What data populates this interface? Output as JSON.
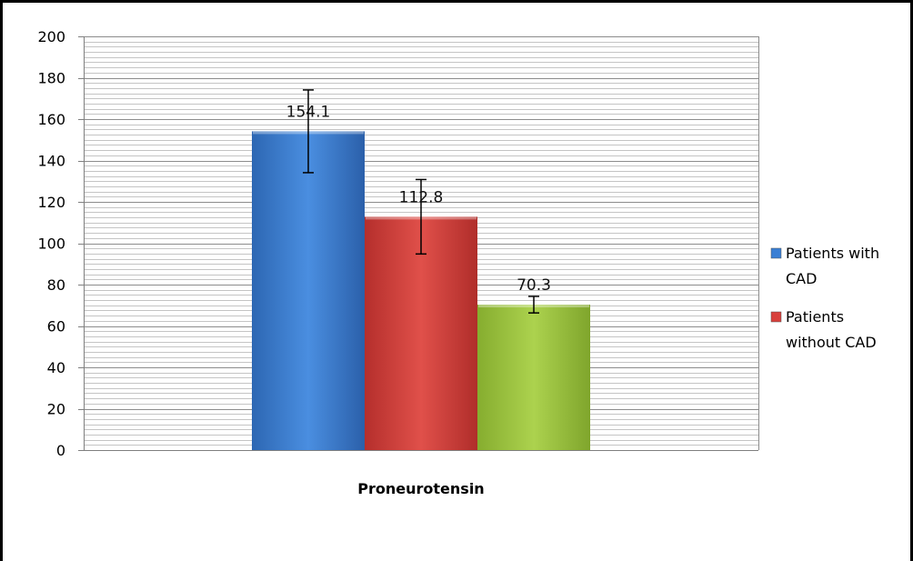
{
  "chart_data": {
    "type": "bar",
    "categories": [
      "Proneurotensin"
    ],
    "series": [
      {
        "name": "Patients with CAD",
        "values": [
          154.1
        ],
        "error": [
          20
        ],
        "color": "#3a7fd4"
      },
      {
        "name": "Patients without CAD",
        "values": [
          112.8
        ],
        "error": [
          18
        ],
        "color": "#d8403c"
      },
      {
        "values": [
          70.3
        ],
        "error": [
          4
        ],
        "color": "#9bc23f"
      }
    ],
    "data_labels": [
      "154.1",
      "112.8",
      "70.3"
    ],
    "ylim": [
      0,
      200
    ],
    "yticks": [
      "0",
      "20",
      "40",
      "60",
      "80",
      "100",
      "120",
      "140",
      "160",
      "180",
      "200"
    ],
    "xlabel": "",
    "ylabel": "",
    "title": "",
    "grid": true,
    "legend_position": "right",
    "legend": [
      {
        "lines": [
          "Patients with",
          "CAD"
        ],
        "color": "#3a7fd4"
      },
      {
        "lines": [
          "Patients",
          "without CAD"
        ],
        "color": "#d8403c"
      }
    ]
  }
}
